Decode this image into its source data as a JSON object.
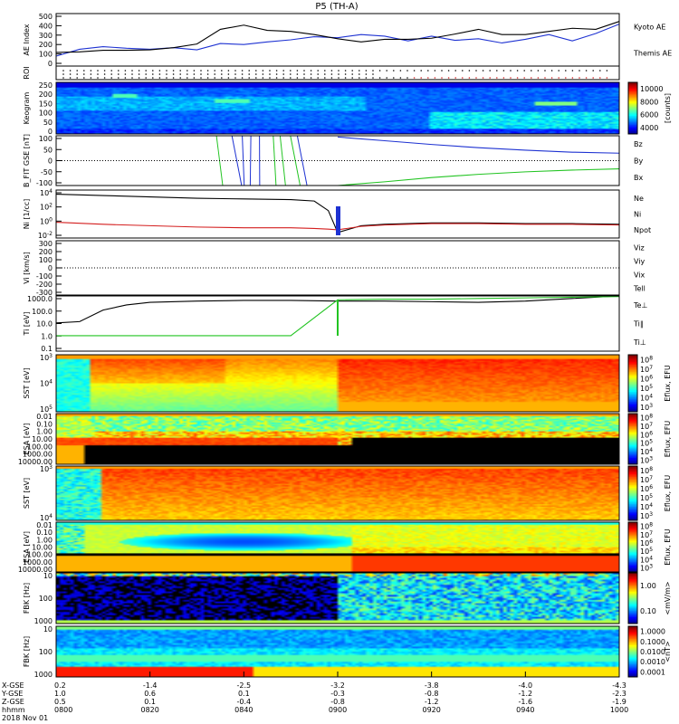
{
  "title": "P5 (TH-A)",
  "date": "2018 Nov 01",
  "time_axis": {
    "ticks": [
      "0800",
      "0820",
      "0840",
      "0900",
      "0920",
      "0940",
      "1000"
    ],
    "rows": [
      {
        "label": "X-GSE",
        "values": [
          "0.2",
          "-1.4",
          "-2.5",
          "-3.2",
          "-3.8",
          "-4.0",
          "-4.3"
        ]
      },
      {
        "label": "Y-GSE",
        "values": [
          "1.0",
          "0.6",
          "0.1",
          "-0.3",
          "-0.8",
          "-1.2",
          "-2.3"
        ]
      },
      {
        "label": "Z-GSE",
        "values": [
          "0.5",
          "0.1",
          "-0.4",
          "-0.8",
          "-1.2",
          "-1.6",
          "-1.9"
        ]
      },
      {
        "label": "hhmm",
        "values": [
          "0800",
          "0820",
          "0840",
          "0900",
          "0920",
          "0940",
          "1000"
        ]
      }
    ]
  },
  "colors": {
    "red": "#d41e1e",
    "green": "#22c422",
    "blue": "#1e32d2",
    "black": "#000000"
  },
  "chart_data": [
    {
      "type": "line",
      "id": "ae",
      "ylabel": "AE Index",
      "ylim": [
        0,
        500
      ],
      "yticks": [
        "0",
        "100",
        "200",
        "300",
        "400",
        "500"
      ],
      "legend": [
        {
          "name": "Kyoto AE",
          "color": "#1e32d2"
        },
        {
          "name": "Themis AE",
          "color": "#000000"
        }
      ],
      "x": [
        0,
        5,
        10,
        15,
        20,
        25,
        30,
        35,
        40,
        45,
        50,
        55,
        60,
        65,
        70,
        75,
        80,
        85,
        90,
        95,
        100,
        105,
        110,
        115,
        120
      ],
      "series": [
        {
          "name": "Kyoto AE",
          "values": [
            95,
            160,
            185,
            170,
            160,
            175,
            155,
            215,
            205,
            230,
            250,
            280,
            270,
            300,
            285,
            240,
            285,
            245,
            260,
            220,
            255,
            300,
            240,
            310,
            400
          ]
        },
        {
          "name": "Themis AE",
          "values": [
            130,
            135,
            150,
            150,
            155,
            175,
            210,
            350,
            390,
            340,
            330,
            300,
            260,
            230,
            255,
            255,
            265,
            305,
            350,
            300,
            300,
            330,
            360,
            350,
            425
          ]
        }
      ]
    },
    {
      "type": "scatter",
      "id": "roi",
      "ylabel": "ROI",
      "note": "dotted region-of-interest flag rows"
    },
    {
      "type": "heatmap",
      "id": "keogram",
      "ylabel": "Keogram",
      "ylim": [
        0,
        250
      ],
      "yticks": [
        "0",
        "50",
        "100",
        "150",
        "200",
        "250"
      ],
      "colorbar": {
        "label": "[counts]",
        "ticks": [
          "4000",
          "6000",
          "8000",
          "10000"
        ]
      }
    },
    {
      "type": "line",
      "id": "bfit",
      "ylabel": "B_FIT GSE [nT]",
      "ylim": [
        -100,
        100
      ],
      "yticks": [
        "-100",
        "-50",
        "0",
        "50",
        "100"
      ],
      "legend": [
        {
          "name": "Bz",
          "color": "#d41e1e"
        },
        {
          "name": "By",
          "color": "#22c422"
        },
        {
          "name": "Bx",
          "color": "#1e32d2"
        }
      ],
      "x": [
        60,
        70,
        80,
        90,
        100,
        110,
        120
      ],
      "series": [
        {
          "name": "Bx",
          "values": [
            95,
            80,
            65,
            52,
            42,
            34,
            30
          ]
        },
        {
          "name": "By",
          "values": [
            -100,
            -85,
            -68,
            -55,
            -45,
            -38,
            -33
          ]
        }
      ]
    },
    {
      "type": "line",
      "id": "density",
      "ylabel": "Ni [1/cc]",
      "ylim": [
        -2,
        5
      ],
      "log": true,
      "yticks": [
        "10^-2",
        "10^0",
        "10^2",
        "10^4"
      ],
      "legend": [
        {
          "name": "Ne",
          "color": "#d41e1e"
        },
        {
          "name": "Ni",
          "color": "#000000"
        },
        {
          "name": "Npot",
          "color": "#1e32d2"
        }
      ],
      "x": [
        0,
        10,
        20,
        30,
        40,
        50,
        55,
        58,
        60,
        65,
        70,
        80,
        90,
        100,
        110,
        120
      ],
      "series": [
        {
          "name": "Ni",
          "values": [
            4.4,
            4.2,
            4.0,
            3.8,
            3.7,
            3.6,
            3.4,
            2.0,
            -1.2,
            -0.2,
            0.0,
            0.2,
            0.2,
            0.1,
            0.1,
            0.0
          ]
        },
        {
          "name": "Ne",
          "values": [
            0.3,
            0.0,
            -0.2,
            -0.4,
            -0.5,
            -0.5,
            -0.6,
            -0.7,
            -0.8,
            -0.3,
            -0.1,
            0.1,
            0.1,
            0.0,
            0.0,
            -0.1
          ]
        }
      ]
    },
    {
      "type": "line",
      "id": "velocity",
      "ylabel": "Vi [km/s]",
      "ylim": [
        -300,
        300
      ],
      "yticks": [
        "-300",
        "-200",
        "-100",
        "0",
        "100",
        "200",
        "300"
      ],
      "legend": [
        {
          "name": "Viz",
          "color": "#d41e1e"
        },
        {
          "name": "Viy",
          "color": "#22c422"
        },
        {
          "name": "Vix",
          "color": "#1e32d2"
        },
        {
          "name": "Tell",
          "color": "#000000"
        }
      ]
    },
    {
      "type": "line",
      "id": "temperature",
      "ylabel": "Ti [eV]",
      "ylim": [
        -1,
        3.3
      ],
      "log": true,
      "yticks": [
        "0.1",
        "1.0",
        "10.0",
        "100.0",
        "1000.0"
      ],
      "legend": [
        {
          "name": "Te⊥",
          "color": "#d41e1e"
        },
        {
          "name": "Ti∥",
          "color": "#22c422"
        },
        {
          "name": "Ti⊥",
          "color": "#1e32d2"
        }
      ],
      "x": [
        0,
        5,
        10,
        15,
        20,
        30,
        40,
        50,
        60,
        70,
        80,
        90,
        100,
        110,
        120
      ],
      "series": [
        {
          "name": "Ti_black",
          "values": [
            1.2,
            1.3,
            2.2,
            2.6,
            2.8,
            2.9,
            2.95,
            2.95,
            2.9,
            2.9,
            2.85,
            2.8,
            2.9,
            3.1,
            3.3
          ]
        },
        {
          "name": "Ti_green",
          "values": [
            0.2,
            0.2,
            0.2,
            0.2,
            0.2,
            0.2,
            0.2,
            0.2,
            3.0,
            3.05,
            3.05,
            3.1,
            3.15,
            3.2,
            3.25
          ]
        }
      ]
    },
    {
      "type": "heatmap",
      "id": "sst_i",
      "ylabel": "SST [eV]",
      "yticks": [
        "10^5",
        "10^4",
        "10^3"
      ],
      "colorbar": {
        "label": "Eflux, EFU",
        "ticks": [
          "10^3",
          "10^4",
          "10^5",
          "10^6",
          "10^7",
          "10^8"
        ]
      }
    },
    {
      "type": "heatmap",
      "id": "esa_i",
      "ylabel": "ESA [eV]",
      "yticks": [
        "10000.00",
        "1000.00",
        "100.00",
        "10.00",
        "1.00",
        "0.10",
        "0.01"
      ],
      "colorbar": {
        "label": "Eflux, EFU",
        "ticks": [
          "10^3",
          "10^4",
          "10^5",
          "10^6",
          "10^7",
          "10^8"
        ]
      }
    },
    {
      "type": "heatmap",
      "id": "sst_e",
      "ylabel": "SST [eV]",
      "yticks": [
        "10^4",
        "10^3"
      ],
      "colorbar": {
        "label": "Eflux, EFU",
        "ticks": [
          "10^3",
          "10^4",
          "10^5",
          "10^6",
          "10^7",
          "10^8"
        ]
      }
    },
    {
      "type": "heatmap",
      "id": "esa_e",
      "ylabel": "ESA [eV]",
      "yticks": [
        "10000.00",
        "1000.00",
        "100.00",
        "10.00",
        "1.00",
        "0.10",
        "0.01"
      ],
      "colorbar": {
        "label": "Eflux, EFU",
        "ticks": [
          "10^3",
          "10^4",
          "10^5",
          "10^6",
          "10^7",
          "10^8"
        ]
      }
    },
    {
      "type": "heatmap",
      "id": "fbk_e",
      "ylabel": "FBK [Hz]",
      "yticks": [
        "1000",
        "100",
        "10"
      ],
      "colorbar": {
        "label": "<mV/m>",
        "ticks": [
          "0.10",
          "1.00"
        ]
      }
    },
    {
      "type": "heatmap",
      "id": "fbk_b",
      "ylabel": "FBK [Hz]",
      "yticks": [
        "1000",
        "100",
        "10"
      ],
      "colorbar": {
        "label": "<nT>",
        "ticks": [
          "0.0001",
          "0.0010",
          "0.0100",
          "0.1000",
          "1.0000"
        ]
      }
    }
  ]
}
